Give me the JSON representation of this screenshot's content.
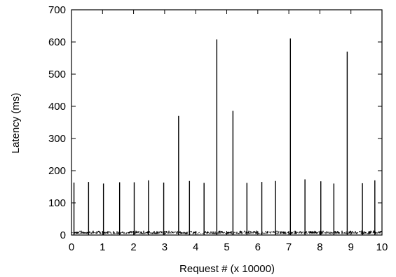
{
  "chart_data": {
    "type": "line",
    "title": "",
    "xlabel": "Request # (x 10000)",
    "ylabel": "Latency (ms)",
    "xlim": [
      0,
      10
    ],
    "ylim": [
      0,
      700
    ],
    "x_ticks": [
      0,
      1,
      2,
      3,
      4,
      5,
      6,
      7,
      8,
      9,
      10
    ],
    "y_ticks": [
      0,
      100,
      200,
      300,
      400,
      500,
      600,
      700
    ],
    "grid": false,
    "legend": "none",
    "line_color": "#000000",
    "baseline": {
      "value_range": [
        3,
        14
      ]
    },
    "spikes": [
      {
        "x": 0.08,
        "y": 163
      },
      {
        "x": 0.55,
        "y": 165
      },
      {
        "x": 1.03,
        "y": 160
      },
      {
        "x": 1.55,
        "y": 164
      },
      {
        "x": 2.02,
        "y": 164
      },
      {
        "x": 2.48,
        "y": 170
      },
      {
        "x": 2.97,
        "y": 163
      },
      {
        "x": 3.45,
        "y": 370
      },
      {
        "x": 3.8,
        "y": 168
      },
      {
        "x": 4.27,
        "y": 162
      },
      {
        "x": 4.68,
        "y": 608
      },
      {
        "x": 5.2,
        "y": 386
      },
      {
        "x": 5.65,
        "y": 162
      },
      {
        "x": 6.13,
        "y": 165
      },
      {
        "x": 6.57,
        "y": 168
      },
      {
        "x": 7.05,
        "y": 611
      },
      {
        "x": 7.52,
        "y": 173
      },
      {
        "x": 8.03,
        "y": 167
      },
      {
        "x": 8.45,
        "y": 160
      },
      {
        "x": 8.88,
        "y": 570
      },
      {
        "x": 9.37,
        "y": 161
      },
      {
        "x": 9.77,
        "y": 170
      }
    ]
  }
}
